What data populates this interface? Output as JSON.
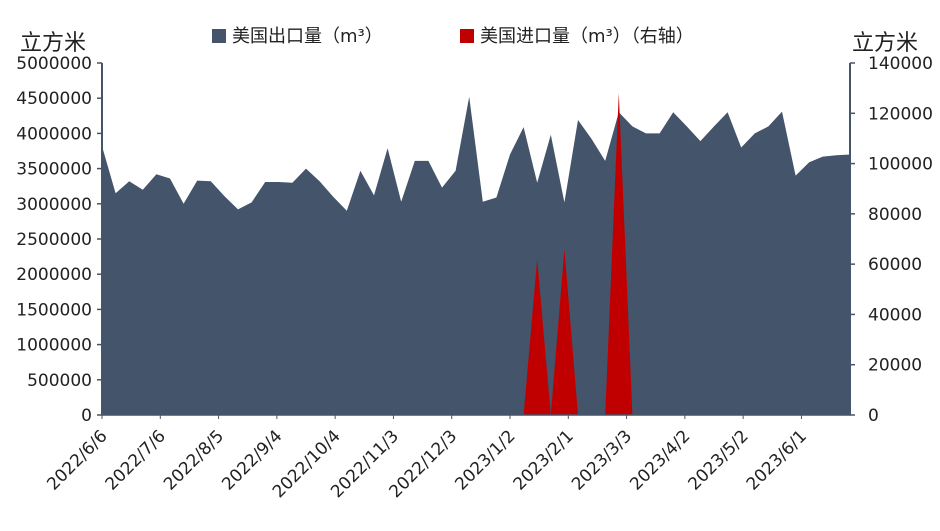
{
  "chart_data": {
    "type": "area",
    "left_unit": "立方米",
    "right_unit": "立方米",
    "legend": [
      {
        "name": "美国出口量（m³）",
        "color": "#44546A"
      },
      {
        "name": "美国进口量（m³）（右轴）",
        "color": "#C00000"
      }
    ],
    "left_axis": {
      "ylim": [
        0,
        5000000
      ],
      "ticks": [
        "0",
        "500000",
        "1000000",
        "1500000",
        "2000000",
        "2500000",
        "3000000",
        "3500000",
        "4000000",
        "4500000",
        "5000000"
      ]
    },
    "right_axis": {
      "ylim": [
        0,
        140000
      ],
      "ticks": [
        "0",
        "20000",
        "40000",
        "60000",
        "80000",
        "100000",
        "120000",
        "140000"
      ]
    },
    "x_tick_labels": [
      "2022/6/6",
      "2022/7/6",
      "2022/8/5",
      "2022/9/4",
      "2022/10/4",
      "2022/11/3",
      "2022/12/3",
      "2023/1/2",
      "2023/2/1",
      "2023/3/3",
      "2023/4/2",
      "2023/5/2",
      "2023/6/1"
    ],
    "x_range": [
      "2022/6/6",
      "2023/6/26"
    ],
    "series": [
      {
        "name": "美国出口量（m³）",
        "axis": "left",
        "color": "#44546A",
        "x": [
          "2022/6/6",
          "2022/6/13",
          "2022/6/20",
          "2022/6/27",
          "2022/7/4",
          "2022/7/11",
          "2022/7/18",
          "2022/7/25",
          "2022/8/1",
          "2022/8/8",
          "2022/8/15",
          "2022/8/22",
          "2022/8/29",
          "2022/9/5",
          "2022/9/12",
          "2022/9/19",
          "2022/9/26",
          "2022/10/3",
          "2022/10/10",
          "2022/10/17",
          "2022/10/24",
          "2022/10/31",
          "2022/11/7",
          "2022/11/14",
          "2022/11/21",
          "2022/11/28",
          "2022/12/5",
          "2022/12/12",
          "2022/12/19",
          "2022/12/26",
          "2023/1/2",
          "2023/1/9",
          "2023/1/16",
          "2023/1/23",
          "2023/1/30",
          "2023/2/6",
          "2023/2/13",
          "2023/2/20",
          "2023/2/27",
          "2023/3/6",
          "2023/3/13",
          "2023/3/20",
          "2023/3/27",
          "2023/4/3",
          "2023/4/10",
          "2023/4/17",
          "2023/4/24",
          "2023/5/1",
          "2023/5/8",
          "2023/5/15",
          "2023/5/22",
          "2023/5/29",
          "2023/6/5",
          "2023/6/12",
          "2023/6/19",
          "2023/6/26"
        ],
        "values": [
          3820000,
          3150000,
          3320000,
          3200000,
          3420000,
          3360000,
          3000000,
          3330000,
          3320000,
          3110000,
          2920000,
          3020000,
          3310000,
          3310000,
          3300000,
          3500000,
          3320000,
          3100000,
          2900000,
          3470000,
          3120000,
          3790000,
          3030000,
          3610000,
          3610000,
          3230000,
          3470000,
          4520000,
          3030000,
          3090000,
          3700000,
          4090000,
          3300000,
          3980000,
          3020000,
          4190000,
          3920000,
          3610000,
          4300000,
          4100000,
          4000000,
          4000000,
          4300000,
          4100000,
          3890000,
          4100000,
          4300000,
          3800000,
          4000000,
          4100000,
          4310000,
          3400000,
          3590000,
          3670000,
          3690000,
          3700000
        ]
      },
      {
        "name": "美国进口量（m³）（右轴）",
        "axis": "right",
        "color": "#C00000",
        "x": [
          "2022/6/6",
          "2023/1/9",
          "2023/1/16",
          "2023/1/23",
          "2023/1/30",
          "2023/2/6",
          "2023/2/20",
          "2023/2/27",
          "2023/3/6",
          "2023/6/26"
        ],
        "values": [
          0,
          0,
          62000,
          0,
          66000,
          0,
          0,
          128000,
          0,
          0
        ]
      }
    ]
  }
}
